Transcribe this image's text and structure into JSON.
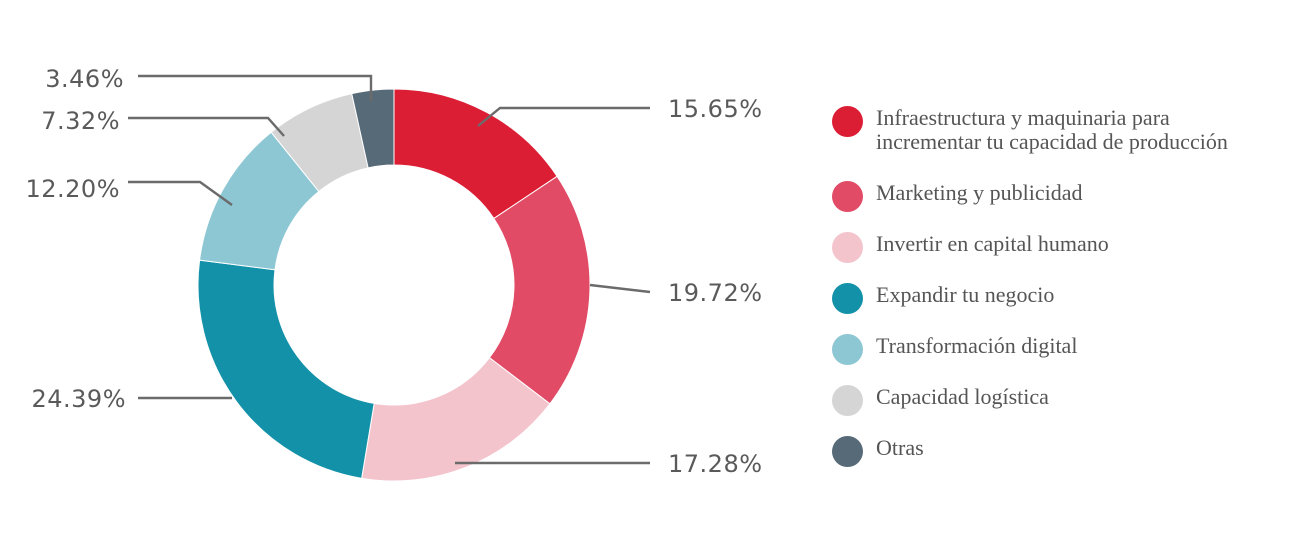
{
  "chart_data": {
    "type": "pie",
    "variant": "donut",
    "title": "",
    "series": [
      {
        "name": "Infraestructura y maquinaria para incrementar tu capacidad de producción",
        "value": 15.65,
        "label": "15.65%",
        "color": "#dc1e35"
      },
      {
        "name": "Marketing y publicidad",
        "value": 19.72,
        "label": "19.72%",
        "color": "#e24b66"
      },
      {
        "name": "Invertir en capital humano",
        "value": 17.28,
        "label": "17.28%",
        "color": "#f4c4cd"
      },
      {
        "name": "Expandir tu negocio",
        "value": 24.39,
        "label": "24.39%",
        "color": "#1391a8"
      },
      {
        "name": "Transformación digital",
        "value": 12.2,
        "label": "12.20%",
        "color": "#8dc7d4"
      },
      {
        "name": "Capacidad logística",
        "value": 7.32,
        "label": "7.32%",
        "color": "#d5d5d5"
      },
      {
        "name": "Otras",
        "value": 3.46,
        "label": "3.46%",
        "color": "#566a78"
      }
    ],
    "legend_position": "right"
  },
  "legend": {
    "items": [
      {
        "label": "Infraestructura y maquinaria para\nincrementar tu capacidad de producción"
      },
      {
        "label": "Marketing y publicidad"
      },
      {
        "label": "Invertir en capital humano"
      },
      {
        "label": "Expandir tu negocio"
      },
      {
        "label": "Transformación digital"
      },
      {
        "label": "Capacidad logística"
      },
      {
        "label": "Otras"
      }
    ]
  }
}
